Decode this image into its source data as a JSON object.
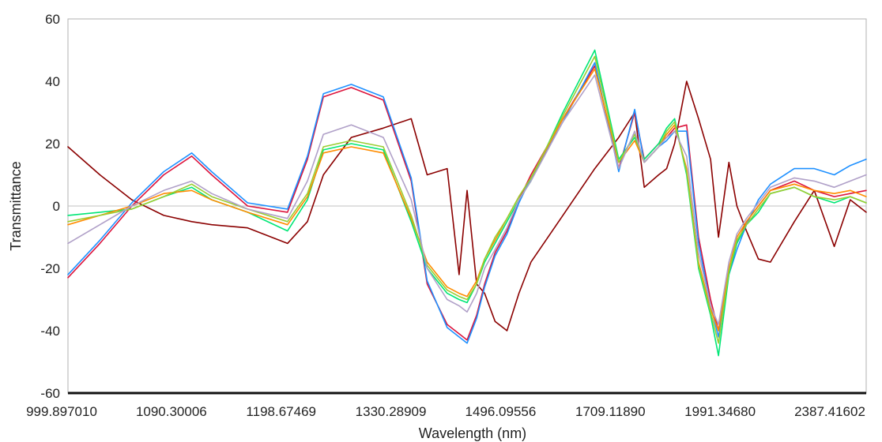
{
  "chart_data": {
    "type": "line",
    "title": "",
    "xlabel": "Wavelength (nm)",
    "ylabel": "Transmittance",
    "ylim": [
      -60,
      60
    ],
    "yticks": [
      60,
      40,
      20,
      0,
      -20,
      -40,
      -60
    ],
    "xtick_labels": [
      "999.897010",
      "1090.30006",
      "1198.67469",
      "1330.28909",
      "1496.09556",
      "1709.11890",
      "1991.34680",
      "2387.41602"
    ],
    "x": [
      0,
      0.04,
      0.08,
      0.12,
      0.155,
      0.18,
      0.225,
      0.275,
      0.3,
      0.32,
      0.355,
      0.395,
      0.43,
      0.45,
      0.475,
      0.49,
      0.5,
      0.512,
      0.522,
      0.535,
      0.55,
      0.565,
      0.58,
      0.62,
      0.66,
      0.69,
      0.71,
      0.722,
      0.74,
      0.75,
      0.76,
      0.775,
      0.79,
      0.805,
      0.815,
      0.828,
      0.838,
      0.85,
      0.865,
      0.88,
      0.91,
      0.935,
      0.96,
      0.98,
      1.0
    ],
    "grid": false,
    "legend": "none",
    "series": [
      {
        "color": "#8b0000",
        "values": [
          19,
          10,
          2,
          -3,
          -5,
          -6,
          -7,
          -12,
          -5,
          10,
          22,
          25,
          28,
          10,
          12,
          -22,
          5,
          -25,
          -28,
          -37,
          -40,
          -28,
          -18,
          -3,
          12,
          22,
          30,
          6,
          10,
          12,
          20,
          40,
          28,
          15,
          -10,
          14,
          0,
          -8,
          -17,
          -18,
          -5,
          5,
          -13,
          2,
          -2
        ]
      },
      {
        "color": "#dc143c",
        "values": [
          -23,
          -12,
          0,
          10,
          16,
          10,
          0,
          -2,
          15,
          35,
          38,
          34,
          8,
          -25,
          -38,
          -41,
          -43,
          -35,
          -25,
          -15,
          -8,
          2,
          10,
          28,
          45,
          12,
          30,
          15,
          20,
          22,
          25,
          26,
          -10,
          -30,
          -40,
          -20,
          -12,
          -5,
          0,
          5,
          8,
          5,
          3,
          4,
          5
        ]
      },
      {
        "color": "#1e90ff",
        "values": [
          -22,
          -11,
          1,
          11,
          17,
          11,
          1,
          -1,
          16,
          36,
          39,
          35,
          9,
          -24,
          -39,
          -42,
          -44,
          -36,
          -26,
          -16,
          -9,
          1,
          9,
          27,
          46,
          11,
          31,
          14,
          19,
          21,
          24,
          24,
          -12,
          -32,
          -42,
          -22,
          -14,
          -6,
          2,
          7,
          12,
          12,
          10,
          13,
          15
        ]
      },
      {
        "color": "#00e676",
        "values": [
          -3,
          -2,
          -1,
          3,
          6,
          2,
          -2,
          -8,
          2,
          18,
          20,
          18,
          -5,
          -20,
          -28,
          -30,
          -31,
          -25,
          -18,
          -12,
          -5,
          2,
          8,
          30,
          50,
          15,
          22,
          15,
          20,
          25,
          28,
          10,
          -20,
          -35,
          -48,
          -22,
          -12,
          -6,
          -2,
          4,
          6,
          3,
          1,
          3,
          1
        ]
      },
      {
        "color": "#ff8c00",
        "values": [
          -6,
          -3,
          0,
          4,
          5,
          2,
          -2,
          -6,
          3,
          17,
          19,
          17,
          -4,
          -18,
          -26,
          -28,
          -29,
          -24,
          -17,
          -11,
          -4,
          3,
          9,
          28,
          44,
          14,
          21,
          14,
          19,
          23,
          26,
          12,
          -18,
          -33,
          -40,
          -20,
          -10,
          -5,
          0,
          5,
          7,
          5,
          4,
          5,
          3
        ]
      },
      {
        "color": "#9acd32",
        "values": [
          -5,
          -3,
          -1,
          3,
          7,
          3,
          -1,
          -5,
          4,
          19,
          21,
          19,
          -3,
          -19,
          -27,
          -29,
          -30,
          -25,
          -17,
          -10,
          -4,
          3,
          9,
          29,
          48,
          14,
          23,
          14,
          19,
          24,
          27,
          11,
          -19,
          -34,
          -44,
          -21,
          -11,
          -6,
          -1,
          4,
          6,
          3,
          2,
          3,
          1
        ]
      },
      {
        "color": "#b0a0c8",
        "values": [
          -12,
          -6,
          0,
          5,
          8,
          4,
          -1,
          -4,
          8,
          23,
          26,
          22,
          2,
          -20,
          -30,
          -32,
          -34,
          -28,
          -20,
          -14,
          -7,
          2,
          8,
          27,
          42,
          12,
          24,
          14,
          19,
          22,
          24,
          16,
          -15,
          -32,
          -38,
          -18,
          -9,
          -4,
          1,
          6,
          9,
          8,
          6,
          8,
          10
        ]
      }
    ]
  }
}
